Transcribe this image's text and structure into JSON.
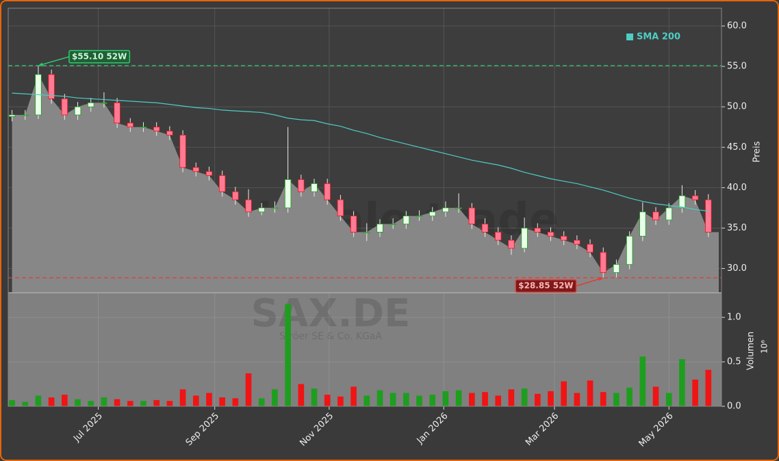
{
  "chart_data": {
    "type": "candlestick",
    "categories": [
      null,
      null,
      null,
      null,
      null,
      null,
      null,
      null,
      null,
      null,
      null,
      null,
      null,
      null,
      null,
      null,
      null,
      null,
      null,
      null,
      null,
      null,
      null,
      null,
      null,
      null,
      null,
      null,
      null,
      null,
      null,
      null,
      null,
      null,
      null,
      null,
      null,
      null,
      null,
      null,
      null,
      null,
      null,
      null,
      null,
      null,
      null,
      null,
      null,
      null,
      null,
      null,
      null,
      null
    ],
    "open": [
      48.8,
      49,
      49,
      54,
      51,
      49,
      50,
      50.5,
      50.5,
      48,
      47.5,
      47.5,
      47,
      46.5,
      42.5,
      42,
      41.5,
      39.5,
      38.5,
      37,
      37.5,
      37.5,
      41,
      39.5,
      40.5,
      38.5,
      36.5,
      34.5,
      34.5,
      35.5,
      35.5,
      36.5,
      36.5,
      37,
      37.5,
      37.5,
      35.5,
      34.5,
      33.5,
      32.5,
      35,
      34.5,
      34,
      33.5,
      33,
      32,
      29.5,
      30.5,
      34,
      37,
      36,
      37.5,
      39,
      38.5
    ],
    "high": [
      49.6,
      49.6,
      55.1,
      54.6,
      51.6,
      50.6,
      51.1,
      51.8,
      51.1,
      48.6,
      48.1,
      48.1,
      47.6,
      47.1,
      43.1,
      42.6,
      42.1,
      40.1,
      39.8,
      38.1,
      38.3,
      47.5,
      41.6,
      41.1,
      41.1,
      39.1,
      37.1,
      35.6,
      36.1,
      36.2,
      37.1,
      37.2,
      37.6,
      38.3,
      39.3,
      38.1,
      36.2,
      35.1,
      34.1,
      36.3,
      35.6,
      35.1,
      34.6,
      34.1,
      33.6,
      32.6,
      31.1,
      34.6,
      38.2,
      37.6,
      38.1,
      40.3,
      39.7,
      39.2
    ],
    "low": [
      48.2,
      48.4,
      48.5,
      50.4,
      48.4,
      48.4,
      49.4,
      49.9,
      47.4,
      46.9,
      46.9,
      46.4,
      45.9,
      41.9,
      41.4,
      40.9,
      38.9,
      37.9,
      36.4,
      36.6,
      36.9,
      36.9,
      38.9,
      38.9,
      37.9,
      35.9,
      33.9,
      33.4,
      33.9,
      34.9,
      34.9,
      35.9,
      35.9,
      36.4,
      36.9,
      34.9,
      33.9,
      32.9,
      31.7,
      32.0,
      33.9,
      33.4,
      32.9,
      32.4,
      31.4,
      28.85,
      28.9,
      29.9,
      33.4,
      35.4,
      35.4,
      36.9,
      37.9,
      33.9
    ],
    "close": [
      49,
      49,
      54,
      51,
      49,
      50,
      50.5,
      50.5,
      48,
      47.5,
      47.5,
      47,
      46.5,
      42.5,
      42,
      41.5,
      39.5,
      38.5,
      37,
      37.5,
      37.5,
      41,
      39.5,
      40.5,
      38.5,
      36.5,
      34.5,
      34.5,
      35.5,
      35.5,
      36.5,
      36.5,
      37,
      37.5,
      37.5,
      35.5,
      34.5,
      33.5,
      32.5,
      35,
      34.5,
      34,
      33.5,
      33,
      32,
      29.5,
      30.5,
      34,
      37,
      36,
      37.5,
      39,
      38.5,
      34.5
    ],
    "volume": [
      0.07,
      0.05,
      0.12,
      0.1,
      0.13,
      0.08,
      0.06,
      0.1,
      0.08,
      0.06,
      0.06,
      0.07,
      0.06,
      0.19,
      0.12,
      0.15,
      0.1,
      0.09,
      0.37,
      0.09,
      0.19,
      1.15,
      0.25,
      0.2,
      0.13,
      0.11,
      0.22,
      0.12,
      0.18,
      0.15,
      0.15,
      0.12,
      0.13,
      0.17,
      0.18,
      0.15,
      0.16,
      0.12,
      0.19,
      0.2,
      0.14,
      0.17,
      0.28,
      0.15,
      0.29,
      0.16,
      0.15,
      0.21,
      0.56,
      0.22,
      0.15,
      0.53,
      0.3,
      0.41
    ],
    "up_color": "#1e9e1e",
    "down_color": "#f01414",
    "candle_up_color": "#e8ffe8",
    "candle_down_color": "#ff7a95",
    "area_color": "#878787",
    "series": [
      {
        "name": "SMA 200",
        "color": "#4ecdc4",
        "values": [
          51.7,
          51.6,
          51.5,
          51.4,
          51.3,
          51.1,
          51.0,
          50.9,
          50.8,
          50.7,
          50.6,
          50.5,
          50.3,
          50.1,
          49.9,
          49.8,
          49.6,
          49.5,
          49.4,
          49.3,
          49.0,
          48.6,
          48.4,
          48.3,
          47.9,
          47.6,
          47.1,
          46.7,
          46.2,
          45.8,
          45.4,
          45.0,
          44.6,
          44.2,
          43.8,
          43.4,
          43.1,
          42.8,
          42.4,
          41.9,
          41.5,
          41.1,
          40.8,
          40.5,
          40.1,
          39.7,
          39.2,
          38.7,
          38.3,
          38.0,
          37.8,
          37.6,
          37.3,
          37.1
        ]
      }
    ],
    "legend": "upper right",
    "grid": true,
    "xlim": [
      -0.29,
      54.0
    ],
    "xticks": [
      {
        "value": 6.57,
        "label": "Jul 2025"
      },
      {
        "value": 15.43,
        "label": "Sep 2025"
      },
      {
        "value": 24.14,
        "label": "Nov 2025"
      },
      {
        "value": 32.86,
        "label": "Jan 2026"
      },
      {
        "value": 41.29,
        "label": "Mar 2026"
      },
      {
        "value": 50.0,
        "label": "May 2026"
      }
    ],
    "ylim": [
      27,
      62.2
    ],
    "yticks": [
      {
        "value": 30,
        "label": "30.0"
      },
      {
        "value": 35,
        "label": "35.0"
      },
      {
        "value": 40,
        "label": "40.0"
      },
      {
        "value": 45,
        "label": "45.0"
      },
      {
        "value": 50,
        "label": "50.0"
      },
      {
        "value": 55,
        "label": "55.0"
      },
      {
        "value": 60,
        "label": "60.0"
      }
    ],
    "y_label": "Preis",
    "volume_ylim": [
      0,
      1.277
    ],
    "volume_yticks": [
      {
        "value": 0,
        "label": "0.0"
      },
      {
        "value": 0.5,
        "label": "0.5"
      },
      {
        "value": 1.0,
        "label": "1.0"
      }
    ],
    "volume_label": "Volumen",
    "volume_offset_label": "10⁶",
    "reference_lines": [
      {
        "value": 55.1,
        "label": "$55.10 52W",
        "color": "#2ecc71",
        "box_color": "#1f5f33"
      },
      {
        "value": 28.85,
        "label": "$28.85 52W",
        "color": "#e53935",
        "box_color": "#7a1a1a"
      }
    ],
    "watermark": {
      "site": "forexsignale.trade",
      "symbol": "SAX.DE",
      "company": "Ströer SE & Co. KGaA"
    }
  }
}
